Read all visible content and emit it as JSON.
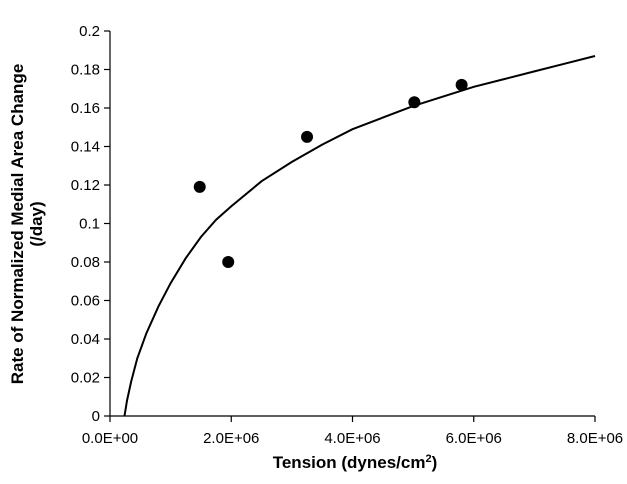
{
  "chart_data": {
    "type": "scatter",
    "title": "",
    "xlabel": "Tension (dynes/cm2)",
    "xlabel_base": "Tension (dynes/cm",
    "xlabel_sup": "2",
    "xlabel_tail": ")",
    "ylabel": "Rate of Normalized Medial Area Change (/day)",
    "ylabel_line1": "Rate of Normalized Medial Area Change",
    "ylabel_line2": "(/day)",
    "xlim": [
      0,
      8000000
    ],
    "ylim": [
      0,
      0.2
    ],
    "x_ticks": [
      0,
      2000000,
      4000000,
      6000000,
      8000000
    ],
    "x_tick_labels": [
      "0.0E+00",
      "2.0E+06",
      "4.0E+06",
      "6.0E+06",
      "8.0E+06"
    ],
    "y_ticks": [
      0,
      0.02,
      0.04,
      0.06,
      0.08,
      0.1,
      0.12,
      0.14,
      0.16,
      0.18,
      0.2
    ],
    "y_tick_labels": [
      "0",
      "0.02",
      "0.04",
      "0.06",
      "0.08",
      "0.1",
      "0.12",
      "0.14",
      "0.16",
      "0.18",
      "0.2"
    ],
    "grid": false,
    "legend": "none",
    "points": [
      {
        "x": 1480000,
        "y": 0.119
      },
      {
        "x": 1950000,
        "y": 0.08
      },
      {
        "x": 3250000,
        "y": 0.145
      },
      {
        "x": 5020000,
        "y": 0.163
      },
      {
        "x": 5800000,
        "y": 0.172
      }
    ],
    "fit_curve": [
      {
        "x": 240000,
        "y": 0.0
      },
      {
        "x": 280000,
        "y": 0.008
      },
      {
        "x": 350000,
        "y": 0.018
      },
      {
        "x": 450000,
        "y": 0.03
      },
      {
        "x": 600000,
        "y": 0.043
      },
      {
        "x": 800000,
        "y": 0.057
      },
      {
        "x": 1000000,
        "y": 0.069
      },
      {
        "x": 1250000,
        "y": 0.082
      },
      {
        "x": 1500000,
        "y": 0.093
      },
      {
        "x": 1750000,
        "y": 0.102
      },
      {
        "x": 2000000,
        "y": 0.109
      },
      {
        "x": 2500000,
        "y": 0.122
      },
      {
        "x": 3000000,
        "y": 0.132
      },
      {
        "x": 3500000,
        "y": 0.141
      },
      {
        "x": 4000000,
        "y": 0.149
      },
      {
        "x": 4500000,
        "y": 0.155
      },
      {
        "x": 5000000,
        "y": 0.161
      },
      {
        "x": 5500000,
        "y": 0.166
      },
      {
        "x": 6000000,
        "y": 0.171
      },
      {
        "x": 6500000,
        "y": 0.175
      },
      {
        "x": 7000000,
        "y": 0.179
      },
      {
        "x": 7500000,
        "y": 0.183
      },
      {
        "x": 8000000,
        "y": 0.187
      }
    ]
  }
}
